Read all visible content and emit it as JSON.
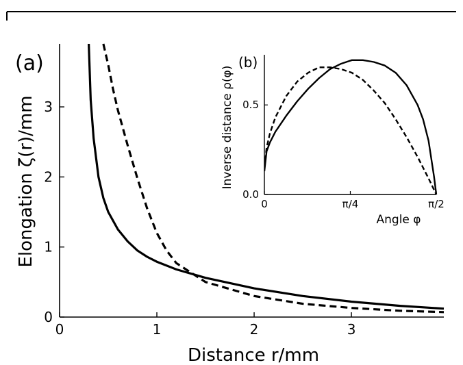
{
  "chart_data": [
    {
      "type": "line",
      "panel_label": "(a)",
      "xlabel": "Distance r/mm",
      "ylabel": "Elongation ζ(r)/mm",
      "xlim": [
        0,
        3.95
      ],
      "ylim": [
        0,
        3.9
      ],
      "x_ticks": [
        0,
        1,
        2,
        3
      ],
      "y_ticks": [
        0,
        1,
        2,
        3
      ],
      "legend": "none",
      "grid": false,
      "series": [
        {
          "style": "solid",
          "x": [
            0.3,
            0.32,
            0.35,
            0.4,
            0.45,
            0.5,
            0.6,
            0.7,
            0.8,
            0.9,
            1.0,
            1.2,
            1.5,
            2.0,
            2.5,
            3.0,
            3.5,
            3.95
          ],
          "y": [
            3.9,
            3.1,
            2.55,
            2.0,
            1.7,
            1.5,
            1.25,
            1.08,
            0.95,
            0.86,
            0.79,
            0.68,
            0.56,
            0.41,
            0.3,
            0.22,
            0.16,
            0.12
          ]
        },
        {
          "style": "dashed",
          "x": [
            0.45,
            0.5,
            0.55,
            0.6,
            0.7,
            0.8,
            0.9,
            1.0,
            1.1,
            1.2,
            1.5,
            2.0,
            2.5,
            3.0,
            3.5,
            3.95
          ],
          "y": [
            3.9,
            3.6,
            3.25,
            2.95,
            2.45,
            1.98,
            1.55,
            1.2,
            0.95,
            0.77,
            0.5,
            0.3,
            0.19,
            0.13,
            0.09,
            0.07
          ]
        }
      ]
    },
    {
      "type": "line",
      "panel_label": "(b)",
      "xlabel": "Angle φ",
      "ylabel": "Inverse distance ρ(φ)",
      "xlim": [
        0,
        1.5708
      ],
      "ylim": [
        0,
        0.78
      ],
      "x_ticks": [
        0,
        0.7854,
        1.5708
      ],
      "x_tick_labels": [
        "0",
        "π/4",
        "π/2"
      ],
      "y_ticks": [
        0,
        0.5
      ],
      "y_tick_labels": [
        "0.0",
        "0.5"
      ],
      "legend": "none",
      "grid": false,
      "series": [
        {
          "style": "solid",
          "x": [
            0,
            0.02,
            0.05,
            0.1,
            0.2,
            0.3,
            0.4,
            0.5,
            0.6,
            0.7,
            0.8,
            0.9,
            1.0,
            1.1,
            1.2,
            1.3,
            1.4,
            1.45,
            1.5,
            1.55,
            1.5708
          ],
          "y": [
            0.13,
            0.24,
            0.29,
            0.35,
            0.44,
            0.52,
            0.59,
            0.65,
            0.7,
            0.73,
            0.75,
            0.75,
            0.74,
            0.72,
            0.68,
            0.61,
            0.5,
            0.42,
            0.3,
            0.1,
            0.0
          ]
        },
        {
          "style": "dashed",
          "x": [
            0,
            0.02,
            0.05,
            0.1,
            0.2,
            0.3,
            0.4,
            0.5,
            0.6,
            0.7,
            0.8,
            0.9,
            1.0,
            1.1,
            1.2,
            1.3,
            1.4,
            1.5,
            1.5708
          ],
          "y": [
            0.15,
            0.26,
            0.34,
            0.43,
            0.55,
            0.63,
            0.68,
            0.71,
            0.71,
            0.7,
            0.68,
            0.64,
            0.58,
            0.51,
            0.42,
            0.32,
            0.21,
            0.09,
            0.0
          ]
        }
      ]
    }
  ]
}
